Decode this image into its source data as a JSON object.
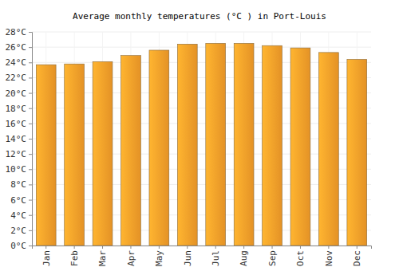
{
  "chart_data": {
    "type": "bar",
    "title": "Average monthly temperatures (°C ) in Port-Louis",
    "categories": [
      "Jan",
      "Feb",
      "Mar",
      "Apr",
      "May",
      "Jun",
      "Jul",
      "Aug",
      "Sep",
      "Oct",
      "Nov",
      "Dec"
    ],
    "values": [
      23.7,
      23.8,
      24.1,
      24.9,
      25.6,
      26.4,
      26.5,
      26.5,
      26.2,
      25.9,
      25.3,
      24.4
    ],
    "color": "#f9a02a",
    "ylim": [
      0,
      28
    ],
    "yticks": [
      {
        "value": 0,
        "label": "0°C"
      },
      {
        "value": 2,
        "label": "2°C"
      },
      {
        "value": 4,
        "label": "4°C"
      },
      {
        "value": 6,
        "label": "6°C"
      },
      {
        "value": 8,
        "label": "8°C"
      },
      {
        "value": 10,
        "label": "10°C"
      },
      {
        "value": 12,
        "label": "12°C"
      },
      {
        "value": 14,
        "label": "14°C"
      },
      {
        "value": 16,
        "label": "16°C"
      },
      {
        "value": 18,
        "label": "18°C"
      },
      {
        "value": 20,
        "label": "20°C"
      },
      {
        "value": 22,
        "label": "22°C"
      },
      {
        "value": 24,
        "label": "24°C"
      },
      {
        "value": 26,
        "label": "26°C"
      },
      {
        "value": 28,
        "label": "28°C"
      }
    ],
    "grid": true
  }
}
